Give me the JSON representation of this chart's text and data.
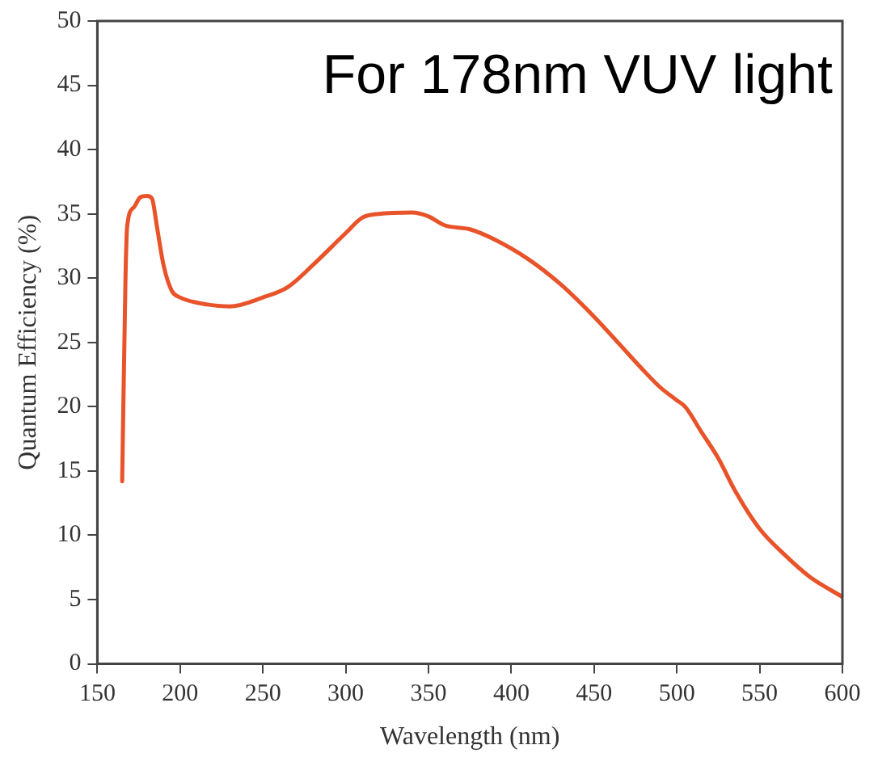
{
  "chart_data": {
    "type": "line",
    "xlabel": "Wavelength (nm)",
    "ylabel": "Quantum Efficiency (%)",
    "annotations": [
      "For 178nm VUV light"
    ],
    "xlim": [
      150,
      600
    ],
    "xticks": [
      150,
      200,
      250,
      300,
      350,
      400,
      450,
      500,
      550,
      600
    ],
    "ylim": [
      0,
      50
    ],
    "yticks": [
      0,
      5,
      10,
      15,
      20,
      25,
      30,
      35,
      40,
      45,
      50
    ],
    "grid": false,
    "legend": false,
    "marker": "none",
    "line_style": "solid",
    "series": [
      {
        "color": "#e8532a",
        "x": [
          165,
          167,
          168,
          172,
          176,
          180,
          183,
          186,
          190,
          195,
          200,
          210,
          230,
          250,
          265,
          280,
          300,
          310,
          320,
          340,
          350,
          360,
          375,
          390,
          410,
          430,
          450,
          470,
          480,
          490,
          500,
          505,
          515,
          525,
          535,
          550,
          565,
          580,
          600
        ],
        "values": [
          14.2,
          30,
          34,
          35.5,
          36.3,
          36.4,
          36.2,
          34,
          31,
          29,
          28.5,
          28.1,
          27.8,
          28.5,
          29.3,
          31,
          33.5,
          34.7,
          35,
          35.1,
          34.8,
          34.1,
          33.8,
          33,
          31.5,
          29.5,
          27,
          24.2,
          22.8,
          21.5,
          20.5,
          20,
          18,
          16,
          13.5,
          10.5,
          8.5,
          6.8,
          5.2
        ]
      }
    ]
  }
}
